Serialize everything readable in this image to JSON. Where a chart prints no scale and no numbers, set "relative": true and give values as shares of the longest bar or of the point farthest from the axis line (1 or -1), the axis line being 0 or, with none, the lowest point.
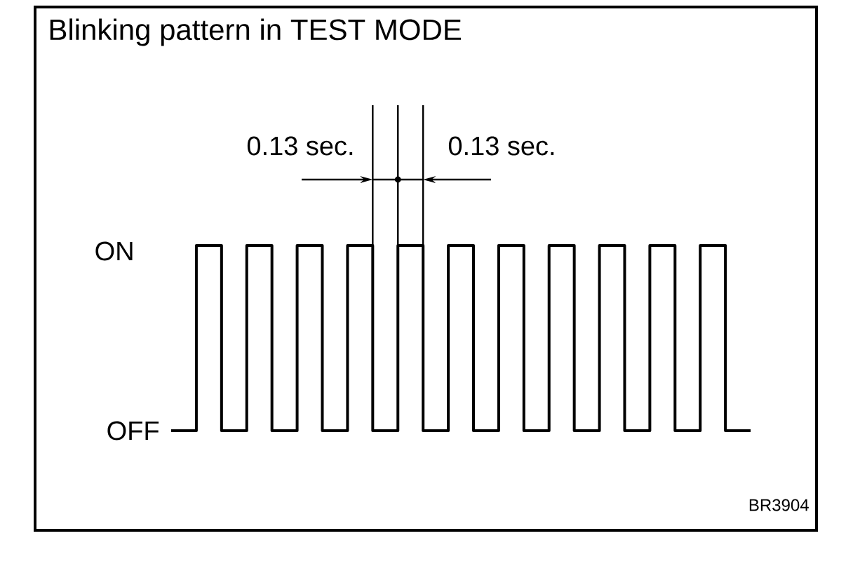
{
  "chart_data": {
    "type": "step",
    "title": "Blinking pattern in TEST MODE",
    "categories": [
      null,
      null,
      null,
      null,
      null,
      null,
      null,
      null,
      null,
      null,
      null,
      null,
      null,
      null,
      null,
      null,
      null,
      null,
      null,
      null,
      null,
      null,
      null,
      null
    ],
    "values": [
      0,
      1,
      0,
      1,
      0,
      1,
      0,
      1,
      0,
      1,
      0,
      1,
      0,
      1,
      0,
      1,
      0,
      1,
      0,
      1,
      0,
      1,
      0,
      0
    ],
    "color": "#000000",
    "relative": true,
    "annotations": [
      "ON",
      "OFF",
      "0.13 sec.",
      "0.13 sec.",
      "BR3904"
    ]
  }
}
